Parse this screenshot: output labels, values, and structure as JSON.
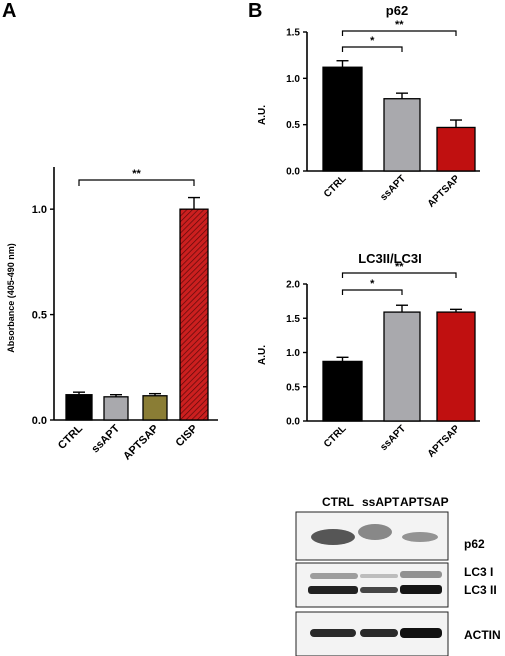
{
  "panels": {
    "a": "A",
    "b": "B"
  },
  "chart_data": [
    {
      "id": "A",
      "type": "bar",
      "title": "",
      "xlabel": "",
      "ylabel": "Absorbance (405-490 nm)",
      "categories": [
        "CTRL",
        "ssAPT",
        "APTSAP",
        "CISP"
      ],
      "values": [
        0.12,
        0.11,
        0.115,
        1.0
      ],
      "errors": [
        0.012,
        0.01,
        0.01,
        0.055
      ],
      "colors": [
        "#000000",
        "#a9a9ad",
        "#8a7d35",
        "#cc1f1f"
      ],
      "hatched": [
        false,
        false,
        false,
        true
      ],
      "ylim": [
        0,
        1.2
      ],
      "yticks": [
        0.0,
        0.5,
        1.0
      ],
      "ytick_labels": [
        "0.0",
        "0.5",
        "1.0"
      ],
      "significance": [
        {
          "from": 0,
          "to": 3,
          "label": "**"
        }
      ]
    },
    {
      "id": "B-p62",
      "type": "bar",
      "title": "p62",
      "xlabel": "",
      "ylabel": "A.U.",
      "categories": [
        "CTRL",
        "ssAPT",
        "APTSAP"
      ],
      "values": [
        1.12,
        0.78,
        0.47
      ],
      "errors": [
        0.07,
        0.06,
        0.08
      ],
      "colors": [
        "#000000",
        "#a9a9ad",
        "#c01010"
      ],
      "ylim": [
        0,
        1.5
      ],
      "yticks": [
        0.0,
        0.5,
        1.0,
        1.5
      ],
      "ytick_labels": [
        "0.0",
        "0.5",
        "1.0",
        "1.5"
      ],
      "significance": [
        {
          "from": 0,
          "to": 1,
          "label": "*"
        },
        {
          "from": 0,
          "to": 2,
          "label": "**"
        }
      ]
    },
    {
      "id": "B-LC3",
      "type": "bar",
      "title": "LC3II/LC3I",
      "xlabel": "",
      "ylabel": "A.U.",
      "categories": [
        "CTRL",
        "ssAPT",
        "APTSAP"
      ],
      "values": [
        0.87,
        1.59,
        1.59
      ],
      "errors": [
        0.06,
        0.1,
        0.04
      ],
      "colors": [
        "#000000",
        "#a9a9ad",
        "#c01010"
      ],
      "ylim": [
        0,
        2.0
      ],
      "yticks": [
        0.0,
        0.5,
        1.0,
        1.5,
        2.0
      ],
      "ytick_labels": [
        "0.0",
        "0.5",
        "1.0",
        "1.5",
        "2.0"
      ],
      "significance": [
        {
          "from": 0,
          "to": 1,
          "label": "*"
        },
        {
          "from": 0,
          "to": 2,
          "label": "**"
        }
      ]
    }
  ],
  "blot": {
    "lanes": [
      "CTRL",
      "ssAPT",
      "APTSAP"
    ],
    "rows": [
      {
        "label": "p62"
      },
      {
        "label": "LC3 I",
        "label2": "LC3 II"
      },
      {
        "label": "ACTIN"
      }
    ]
  }
}
